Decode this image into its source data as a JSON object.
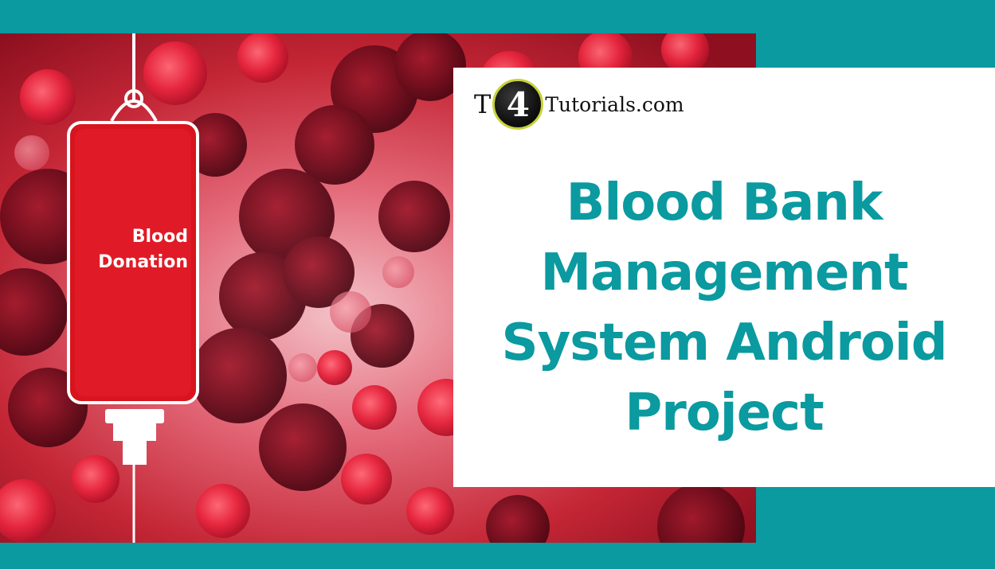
{
  "photo": {
    "label_line1": "Blood",
    "label_line2": "Donation"
  },
  "logo": {
    "prefix": "T",
    "badge": "4",
    "suffix": "Tutorials.com"
  },
  "title": {
    "line1": "Blood Bank",
    "line2": "Management",
    "line3": "System Android",
    "line4": "Project"
  },
  "colors": {
    "teal": "#0a9aa0",
    "blood_red": "#c51e2c",
    "white": "#ffffff"
  }
}
